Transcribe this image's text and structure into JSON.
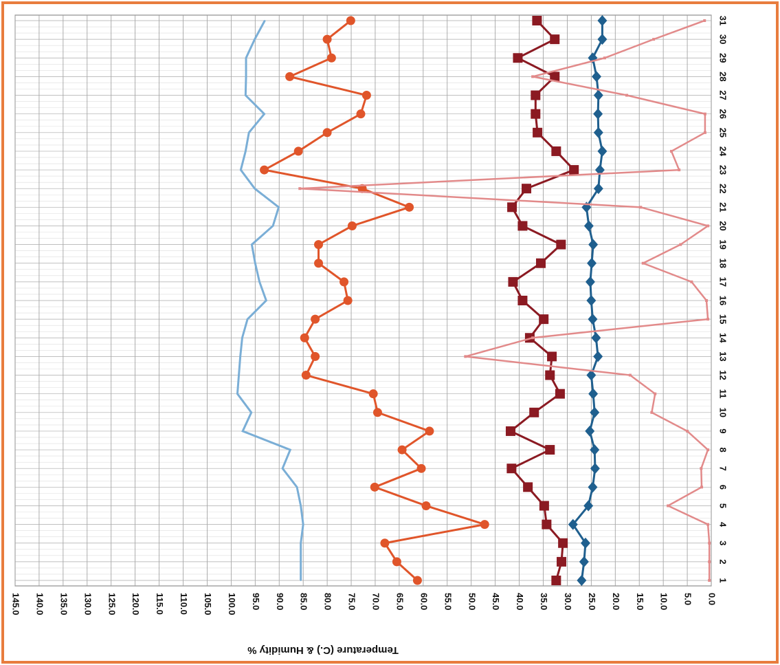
{
  "chart_data": {
    "type": "line",
    "orientation": "horizontal-values",
    "value_axis_label": "Temperature (C.) & Humidity %",
    "categories": [
      "1",
      "2",
      "3",
      "4",
      "5",
      "6",
      "7",
      "8",
      "9",
      "10",
      "11",
      "12",
      "13",
      "14",
      "15",
      "16",
      "17",
      "18",
      "19",
      "20",
      "21",
      "22",
      "23",
      "24",
      "25",
      "26",
      "27",
      "28",
      "29",
      "30",
      "31"
    ],
    "xlim": [
      145,
      0
    ],
    "xticks": [
      {
        "value": 145,
        "label": "145.0"
      },
      {
        "value": 140,
        "label": "140.0"
      },
      {
        "value": 135,
        "label": "135.0"
      },
      {
        "value": 130,
        "label": "130.0"
      },
      {
        "value": 125,
        "label": "125.0"
      },
      {
        "value": 120,
        "label": "120.0"
      },
      {
        "value": 115,
        "label": "115.0"
      },
      {
        "value": 110,
        "label": "110.0"
      },
      {
        "value": 105,
        "label": "105.0"
      },
      {
        "value": 100,
        "label": "100.0"
      },
      {
        "value": 95,
        "label": "95.0"
      },
      {
        "value": 90,
        "label": "90.0"
      },
      {
        "value": 85,
        "label": "85.0"
      },
      {
        "value": 80,
        "label": "80.0"
      },
      {
        "value": 75,
        "label": "75.0"
      },
      {
        "value": 70,
        "label": "70.0"
      },
      {
        "value": 65,
        "label": "65.0"
      },
      {
        "value": 60,
        "label": "60.0"
      },
      {
        "value": 55,
        "label": "55.0"
      },
      {
        "value": 50,
        "label": "50.0"
      },
      {
        "value": 45,
        "label": "45.0"
      },
      {
        "value": 40,
        "label": "40.0"
      },
      {
        "value": 35,
        "label": "35.0"
      },
      {
        "value": 30,
        "label": "30.0"
      },
      {
        "value": 25,
        "label": "25.0"
      },
      {
        "value": 20,
        "label": "20.0"
      },
      {
        "value": 15,
        "label": "15.0"
      },
      {
        "value": 10,
        "label": "10.0"
      },
      {
        "value": 5,
        "label": "5.0"
      },
      {
        "value": 0,
        "label": "0.0"
      }
    ],
    "grid": true,
    "series": [
      {
        "color": "#7aaed6",
        "marker": "none",
        "values": [
          85.5,
          85.5,
          85.5,
          85,
          85.5,
          86.3,
          89.3,
          87.7,
          97.6,
          95.8,
          98.7,
          98.4,
          98.1,
          97.7,
          96.6,
          92.7,
          94.1,
          95,
          95.7,
          91.3,
          90.1,
          95.1,
          98,
          97,
          96.3,
          93.1,
          97,
          96.9,
          96.9,
          95.1,
          93
        ]
      },
      {
        "color": "#e0552a",
        "marker": "circle",
        "values": [
          61.2,
          65.5,
          68,
          47.2,
          59.4,
          70.1,
          60.4,
          64.4,
          58.7,
          69.5,
          70.4,
          84.4,
          82.5,
          84.7,
          82.5,
          75.7,
          76.5,
          81.8,
          81.8,
          74.8,
          62.9,
          72.7,
          93.1,
          86,
          80,
          73,
          71.8,
          87.8,
          79.1,
          80,
          75.1
        ]
      },
      {
        "color": "#8b1a22",
        "marker": "square",
        "values": [
          32.3,
          31.2,
          30.9,
          34.3,
          34.8,
          38.2,
          41.6,
          33.6,
          41.8,
          36.9,
          31.5,
          33.6,
          33.2,
          37.8,
          34.9,
          39.3,
          41.3,
          35.5,
          31.3,
          39.3,
          41.5,
          38.5,
          28.6,
          32.3,
          36.2,
          36.6,
          36.6,
          32.6,
          40.3,
          32.6,
          36.3
        ]
      },
      {
        "color": "#1f5f8e",
        "marker": "diamond",
        "values": [
          27,
          26.5,
          26.2,
          28.8,
          25.6,
          24.7,
          24.2,
          24.3,
          25.3,
          24.3,
          24.6,
          25,
          23.6,
          24,
          24.7,
          25,
          25.2,
          24.9,
          24.6,
          25.5,
          26,
          23.5,
          23.2,
          22.7,
          23.5,
          23.6,
          23.5,
          23.9,
          24.7,
          22.7,
          22.7
        ]
      },
      {
        "color": "#e28a8a",
        "marker": "dash",
        "values": [
          0.4,
          0.4,
          0.4,
          0.7,
          9,
          2,
          2.1,
          0.7,
          5,
          12.4,
          11.7,
          16.9,
          51.2,
          37.2,
          0.7,
          1,
          4.1,
          14.2,
          6.4,
          0.7,
          14.7,
          85.7,
          6.7,
          8.3,
          1.3,
          1.3,
          17.6,
          37.2,
          22.2,
          12,
          1.4
        ]
      }
    ]
  }
}
